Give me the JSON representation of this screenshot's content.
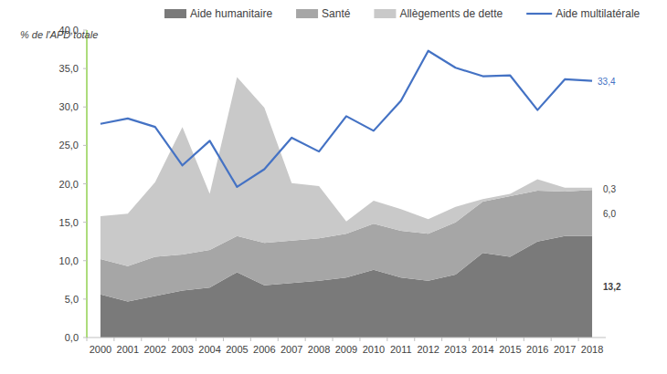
{
  "chart_data": {
    "type": "area",
    "stacked": true,
    "y_label": "% de l'APD totale",
    "categories": [
      "2000",
      "2001",
      "2002",
      "2003",
      "2004",
      "2005",
      "2006",
      "2007",
      "2008",
      "2009",
      "2010",
      "2011",
      "2012",
      "2013",
      "2014",
      "2015",
      "2016",
      "2017",
      "2018"
    ],
    "series": [
      {
        "name": "Aide humanitaire",
        "type": "area",
        "color": "#7a7a7a",
        "values": [
          5.6,
          4.7,
          5.4,
          6.1,
          6.5,
          8.5,
          6.8,
          7.1,
          7.4,
          7.8,
          8.8,
          7.8,
          7.4,
          8.2,
          11.0,
          10.5,
          12.5,
          13.2,
          13.2
        ],
        "value_labels": [
          null,
          null,
          null,
          null,
          null,
          null,
          null,
          null,
          null,
          null,
          null,
          null,
          null,
          null,
          null,
          null,
          null,
          null,
          "13,2"
        ]
      },
      {
        "name": "Santé",
        "type": "area",
        "color": "#a6a6a6",
        "values": [
          4.6,
          4.6,
          5.1,
          4.7,
          4.9,
          4.7,
          5.5,
          5.5,
          5.5,
          5.7,
          6.0,
          6.1,
          6.1,
          6.8,
          6.7,
          7.9,
          6.6,
          5.8,
          6.0
        ],
        "value_labels": [
          null,
          null,
          null,
          null,
          null,
          null,
          null,
          null,
          null,
          null,
          null,
          null,
          null,
          null,
          null,
          null,
          null,
          null,
          "6,0"
        ]
      },
      {
        "name": "Allègements de dette",
        "type": "area",
        "color": "#c9c9c9",
        "values": [
          5.6,
          6.8,
          9.7,
          16.6,
          7.3,
          20.7,
          17.6,
          7.5,
          6.8,
          1.6,
          3.0,
          2.8,
          1.9,
          2.0,
          0.3,
          0.3,
          1.5,
          0.5,
          0.3
        ],
        "value_labels": [
          null,
          null,
          null,
          null,
          null,
          null,
          null,
          null,
          null,
          null,
          null,
          null,
          null,
          null,
          null,
          null,
          null,
          null,
          "0,3"
        ]
      },
      {
        "name": "Aide multilatérale",
        "type": "line",
        "color": "#4472c4",
        "values": [
          27.8,
          28.5,
          27.4,
          22.4,
          25.6,
          19.6,
          21.9,
          26.0,
          24.2,
          28.8,
          26.9,
          30.8,
          37.3,
          35.1,
          34.0,
          34.1,
          29.6,
          33.6,
          33.4
        ],
        "value_labels": [
          null,
          null,
          null,
          null,
          null,
          null,
          null,
          null,
          null,
          null,
          null,
          null,
          null,
          null,
          null,
          null,
          null,
          null,
          "33,4"
        ]
      }
    ],
    "ylim": [
      0,
      40
    ],
    "yticks": [
      {
        "value": 0,
        "label": "0,0"
      },
      {
        "value": 5,
        "label": "5,0"
      },
      {
        "value": 10,
        "label": "10,0"
      },
      {
        "value": 15,
        "label": "15,0"
      },
      {
        "value": 20,
        "label": "20,0"
      },
      {
        "value": 25,
        "label": "25,0"
      },
      {
        "value": 30,
        "label": "30,0"
      },
      {
        "value": 35,
        "label": "35,0"
      },
      {
        "value": 40,
        "label": "40,0"
      }
    ],
    "grid": false,
    "legend": "top"
  }
}
